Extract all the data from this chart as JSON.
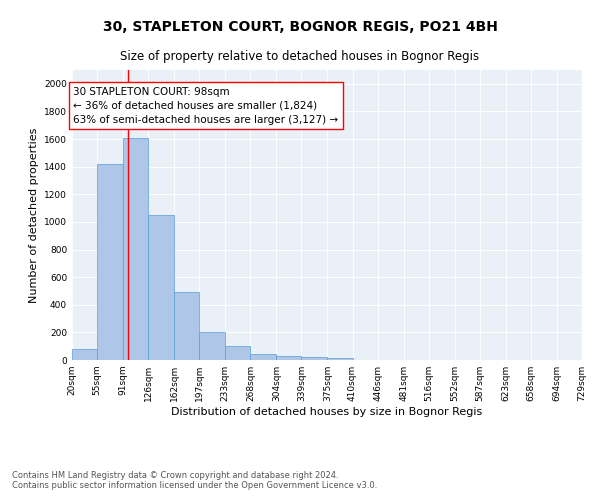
{
  "title": "30, STAPLETON COURT, BOGNOR REGIS, PO21 4BH",
  "subtitle": "Size of property relative to detached houses in Bognor Regis",
  "xlabel": "Distribution of detached houses by size in Bognor Regis",
  "ylabel": "Number of detached properties",
  "footnote1": "Contains HM Land Registry data © Crown copyright and database right 2024.",
  "footnote2": "Contains public sector information licensed under the Open Government Licence v3.0.",
  "bins": [
    20,
    55,
    91,
    126,
    162,
    197,
    233,
    268,
    304,
    339,
    375,
    410,
    446,
    481,
    516,
    552,
    587,
    623,
    658,
    694,
    729
  ],
  "counts": [
    80,
    1420,
    1610,
    1050,
    490,
    205,
    105,
    42,
    30,
    22,
    18,
    0,
    0,
    0,
    0,
    0,
    0,
    0,
    0,
    0
  ],
  "bar_color": "#aec6e8",
  "bar_edge_color": "#5a9fd4",
  "bg_color": "#eaf0f8",
  "vline_x": 98,
  "vline_color": "red",
  "annotation_text": "30 STAPLETON COURT: 98sqm\n← 36% of detached houses are smaller (1,824)\n63% of semi-detached houses are larger (3,127) →",
  "ylim": [
    0,
    2100
  ],
  "yticks": [
    0,
    200,
    400,
    600,
    800,
    1000,
    1200,
    1400,
    1600,
    1800,
    2000
  ],
  "title_fontsize": 10,
  "subtitle_fontsize": 8.5,
  "axis_label_fontsize": 8,
  "tick_fontsize": 6.5,
  "annotation_fontsize": 7.5,
  "footnote_fontsize": 6
}
